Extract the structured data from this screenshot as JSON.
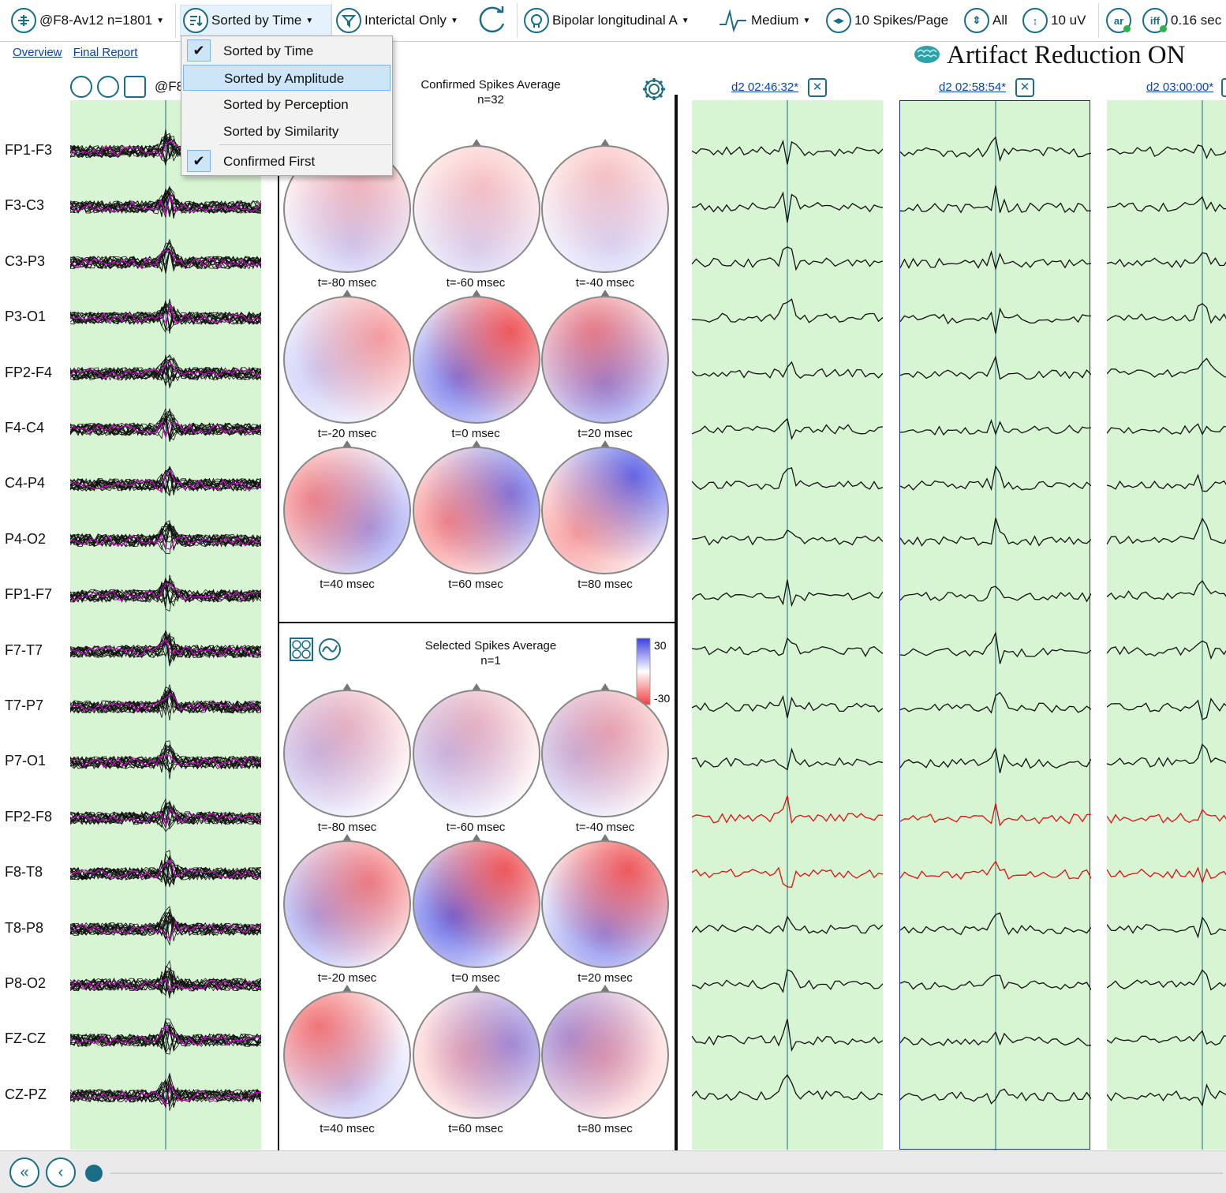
{
  "toolbar": {
    "montage_ref": "@F8-Av12 n=1801",
    "sort": "Sorted by Time",
    "filter": "Interictal Only",
    "montage": "Bipolar longitudinal A",
    "sensitivity_level": "Medium",
    "spikes_per_page": "10 Spikes/Page",
    "channels": "All",
    "gain": "10 uV",
    "ar_label": "ar",
    "iff_label": "iff",
    "duration": "0.16 sec"
  },
  "links": {
    "overview": "Overview",
    "final_report": "Final Report"
  },
  "artifact_reduction": "Artifact Reduction ON",
  "avg_label": "@F8",
  "channels": [
    "FP1-F3",
    "F3-C3",
    "C3-P3",
    "P3-O1",
    "FP2-F4",
    "F4-C4",
    "C4-P4",
    "P4-O2",
    "FP1-F7",
    "F7-T7",
    "T7-P7",
    "P7-O1",
    "FP2-F8",
    "F8-T8",
    "T8-P8",
    "P8-O2",
    "FZ-CZ",
    "CZ-PZ"
  ],
  "confirmed": {
    "title": "Confirmed Spikes Average",
    "count": "n=32"
  },
  "selected": {
    "title": "Selected Spikes Average",
    "count": "n=1",
    "scale_max": "30",
    "scale_min": "-30"
  },
  "time_labels": [
    "t=-80 msec",
    "t=-60 msec",
    "t=-40 msec",
    "t=-20 msec",
    "t=0 msec",
    "t=20 msec",
    "t=40 msec",
    "t=60 msec",
    "t=80 msec"
  ],
  "spikes": [
    {
      "label": "d2 02:46:32*"
    },
    {
      "label": "d2 02:58:54*"
    },
    {
      "label": "d2 03:00:00*"
    }
  ],
  "dropdown": {
    "items": [
      {
        "label": "Sorted by Time",
        "checked": true
      },
      {
        "label": "Sorted by Amplitude",
        "checked": false
      },
      {
        "label": "Sorted by Perception",
        "checked": false
      },
      {
        "label": "Sorted by Similarity",
        "checked": false
      },
      {
        "label": "Confirmed First",
        "checked": true
      }
    ]
  },
  "colors": {
    "accent": "#1a6d86",
    "panel_green": "#d8f5d3",
    "trace": "#111111",
    "highlight_trace": "#e01010",
    "average_trace": "#d000d0",
    "topo_red": "#f04040",
    "topo_blue": "#3a40e0"
  }
}
